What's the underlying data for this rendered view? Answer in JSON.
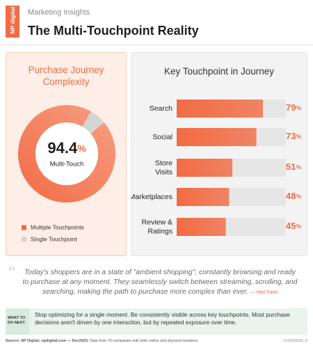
{
  "header": {
    "brand": "NP digital",
    "subtitle": "Marketing Insights",
    "title": "The Multi-Touchpoint Reality"
  },
  "chart_data": [
    {
      "type": "pie",
      "title": "Purchase Journey Complexity",
      "categories": [
        "Multiple Touchpoints",
        "Single Touchpoint"
      ],
      "values": [
        94.4,
        5.6
      ],
      "value_labels": [
        "94.4%",
        null
      ],
      "colors": [
        "#f26b43",
        "#d4d4d4"
      ],
      "annotation": "Multi-Touch"
    },
    {
      "type": "bar",
      "orientation": "horizontal",
      "title": "Key Touchpoint in Journey",
      "categories": [
        "Search",
        "Social",
        "Store Visits",
        "Marketplaces",
        "Review & Ratings"
      ],
      "values": [
        79,
        73,
        51,
        48,
        45
      ],
      "value_labels": [
        "79%",
        "73%",
        "51%",
        "48%",
        "45%"
      ],
      "color": "#f26b43",
      "xlim": [
        0,
        100
      ]
    }
  ],
  "quote": {
    "text": "Today's shoppers are in a state of \"ambient shopping\"; constantly browsing and ready to purchase at any moment. They seamlessly switch between streaming, scrolling, and searching, making the path to purchase more complex than ever.",
    "author": "— Neil Patel"
  },
  "next_step": {
    "label": "WHAT TO DO NEXT:",
    "text": "Stop optimizing for a single moment. Be consistently visible across key touchpoints. Most purchase decisions aren't driven by one interaction, but by repeated exposure over time."
  },
  "footer": {
    "source": "Source: NP Digital; npdigital.com — Dec2025.",
    "note": "Data from 70 companies with both online and physical locations.",
    "code": "12161025A_X"
  }
}
